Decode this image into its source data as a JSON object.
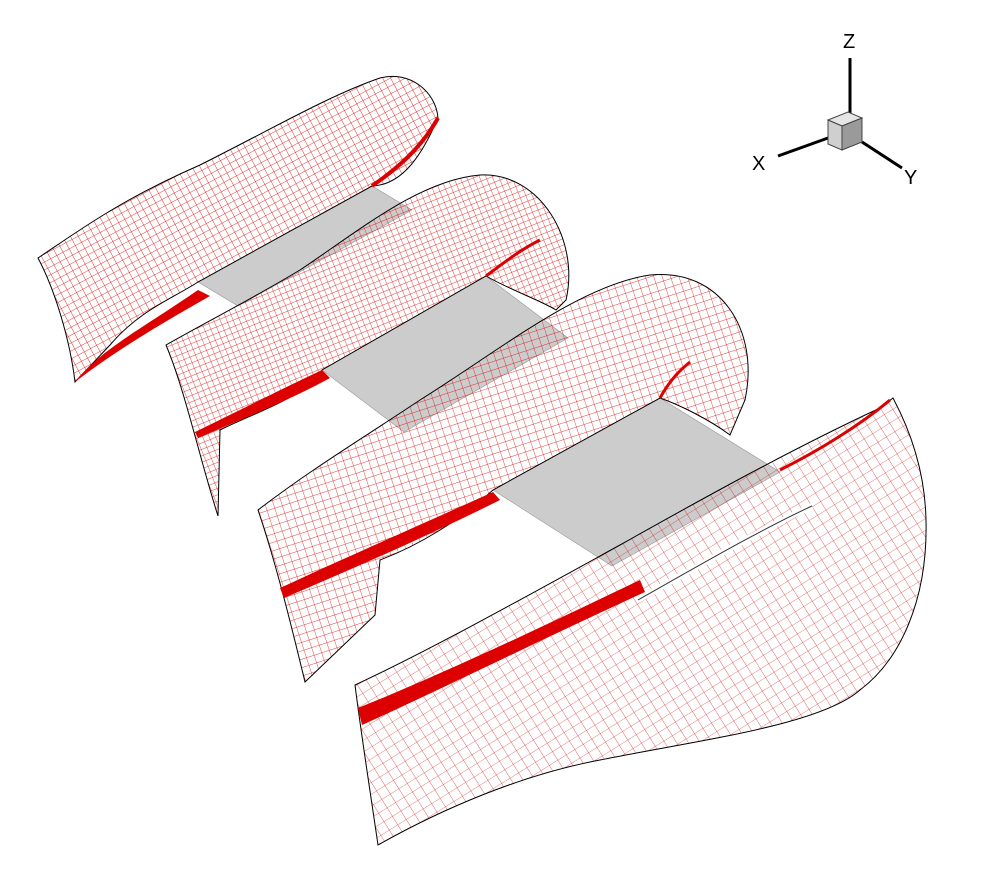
{
  "scene": {
    "description_visible": false,
    "background_color": "#ffffff",
    "mesh_color": "#dd0000",
    "mesh_outline_color": "#000000",
    "surface_color": "#cccccc",
    "blade_count": 4
  },
  "axes": {
    "z_label": "Z",
    "x_label": "X",
    "y_label": "Y",
    "cube_front_color": "#cfcfcf",
    "cube_top_color": "#e6e6e6",
    "cube_side_color": "#9a9a9a"
  }
}
